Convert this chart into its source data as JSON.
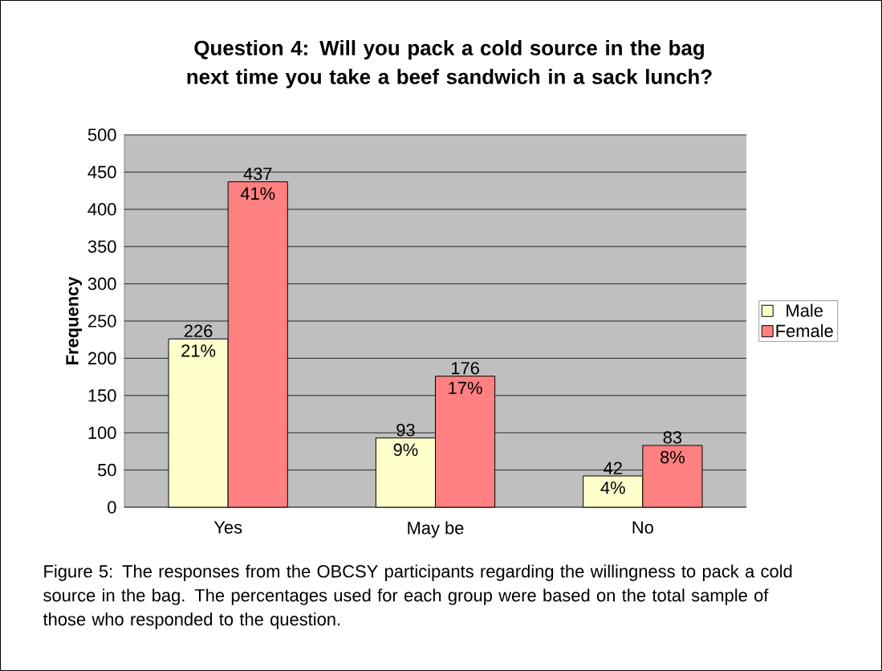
{
  "chart_data": {
    "type": "bar",
    "title": "Question 4: Will you pack a cold source in the bag next time you take a beef sandwich in a sack lunch?",
    "ylabel": "Frequency",
    "categories": [
      "Yes",
      "May be",
      "No"
    ],
    "series": [
      {
        "name": "Male",
        "color": "#ffffcc",
        "values": [
          226,
          93,
          42
        ],
        "value_labels": [
          "226",
          "93",
          "42"
        ]
      },
      {
        "name": "Female",
        "color": "#ff8080",
        "values": [
          437,
          176,
          83
        ],
        "value_labels": [
          "437",
          "176",
          "83"
        ]
      }
    ],
    "ylim": [
      0,
      500
    ],
    "yticks": [
      0,
      50,
      100,
      150,
      200,
      250,
      300,
      350,
      400,
      450,
      500
    ],
    "grid": "y",
    "legend": "right",
    "annotations": [
      {
        "text": "21%",
        "x": "Yes",
        "y": 226
      },
      {
        "text": "9%",
        "x": "May be",
        "y": 93
      },
      {
        "text": "4%",
        "x": "No",
        "y": 42
      },
      {
        "text": "41%",
        "x": "Yes",
        "y": 437
      },
      {
        "text": "17%",
        "x": "May be",
        "y": 176
      },
      {
        "text": "8%",
        "x": "No",
        "y": 83
      },
      "Figure 5: The responses from the OBCSY participants regarding the willingness to pack a cold source in the bag.  The percentages used for each group were based on the total sample of those who responded to the question."
    ]
  }
}
